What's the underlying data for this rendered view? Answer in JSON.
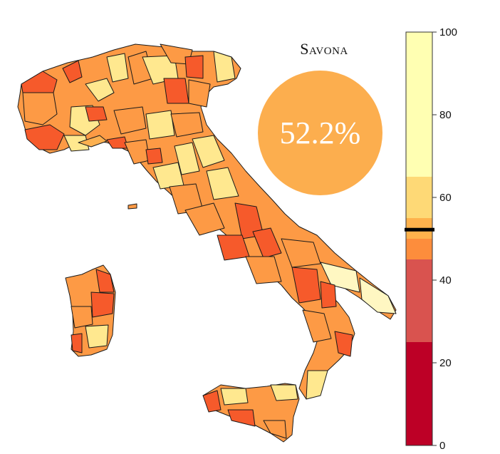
{
  "selected_province": {
    "name": "Savona",
    "value_label": "52.2%",
    "value": 52.2,
    "bubble_color": "#fcae4e"
  },
  "legend": {
    "min": 0,
    "max": 100,
    "ticks": [
      {
        "value": 0,
        "label": "0"
      },
      {
        "value": 20,
        "label": "20"
      },
      {
        "value": 40,
        "label": "40"
      },
      {
        "value": 60,
        "label": "60"
      },
      {
        "value": 80,
        "label": "80"
      },
      {
        "value": 100,
        "label": "100"
      }
    ],
    "bands": [
      {
        "from": 0,
        "to": 25,
        "color": "#bd0026"
      },
      {
        "from": 25,
        "to": 45,
        "color": "#d9534f"
      },
      {
        "from": 45,
        "to": 50,
        "color": "#fd8d3c"
      },
      {
        "from": 50,
        "to": 55,
        "color": "#feb24c"
      },
      {
        "from": 55,
        "to": 65,
        "color": "#fed976"
      },
      {
        "from": 65,
        "to": 100,
        "color": "#ffffb2"
      }
    ],
    "marker_value": 52.2,
    "marker_color": "#000000"
  },
  "palette": {
    "light": "#ffe88f",
    "pale": "#fff7c2",
    "mid": "#fd9a45",
    "dark": "#f65a2b",
    "amber": "#fcb050"
  }
}
